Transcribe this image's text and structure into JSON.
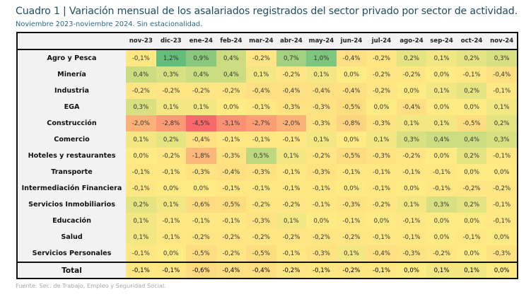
{
  "header": {
    "title": "Cuadro 1 | Variación mensual de los asalariados registrados del sector privado por sector de actividad.",
    "subtitle": "Noviembre 2023-noviembre 2024. Sin estacionalidad."
  },
  "footer": {
    "source": "Fuente: Sec. de Trabajo, Empleo y Seguridad Social."
  },
  "chart_data": {
    "type": "heatmap",
    "title": "Cuadro 1 | Variación mensual de los asalariados registrados del sector privado por sector de actividad.",
    "subtitle": "Noviembre 2023-noviembre 2024. Sin estacionalidad.",
    "unit": "%",
    "color_scale": {
      "low": "#f8696b",
      "mid": "#ffeb84",
      "high": "#63be7b"
    },
    "columns": [
      "nov-23",
      "dic-23",
      "ene-24",
      "feb-24",
      "mar-24",
      "abr-24",
      "may-24",
      "jun-24",
      "jul-24",
      "ago-24",
      "sep-24",
      "oct-24",
      "nov-24"
    ],
    "rows": [
      {
        "label": "Agro y Pesca",
        "values": [
          -0.1,
          1.2,
          0.9,
          0.4,
          -0.2,
          0.7,
          1.0,
          -0.4,
          -0.2,
          0.2,
          0.1,
          0.2,
          0.3
        ]
      },
      {
        "label": "Minería",
        "values": [
          0.4,
          0.3,
          0.4,
          0.4,
          0.1,
          -0.2,
          0.1,
          0.0,
          -0.2,
          -0.2,
          0.0,
          -0.1,
          -0.4
        ]
      },
      {
        "label": "Industria",
        "values": [
          -0.2,
          -0.2,
          -0.2,
          -0.2,
          -0.4,
          -0.4,
          -0.4,
          -0.4,
          -0.2,
          0.0,
          0.1,
          0.2,
          -0.1
        ]
      },
      {
        "label": "EGA",
        "values": [
          0.3,
          0.1,
          0.1,
          0.0,
          -0.1,
          -0.3,
          -0.3,
          -0.5,
          0.0,
          -0.4,
          0.0,
          0.0,
          0.1
        ]
      },
      {
        "label": "Construcción",
        "values": [
          -2.0,
          -2.8,
          -4.5,
          -3.1,
          -2.7,
          -2.0,
          -0.3,
          -0.8,
          -0.3,
          0.1,
          0.1,
          -0.5,
          0.2
        ]
      },
      {
        "label": "Comercio",
        "values": [
          0.1,
          0.2,
          -0.4,
          -0.1,
          -0.1,
          -0.1,
          0.1,
          0.0,
          0.1,
          0.3,
          0.4,
          0.4,
          0.3
        ]
      },
      {
        "label": "Hoteles y restaurantes",
        "values": [
          0.0,
          -0.2,
          -1.8,
          -0.3,
          0.5,
          0.1,
          -0.2,
          -0.5,
          -0.3,
          -0.2,
          0.0,
          0.2,
          -0.1
        ]
      },
      {
        "label": "Transporte",
        "values": [
          -0.1,
          -0.1,
          -0.3,
          -0.4,
          -0.3,
          -0.1,
          -0.3,
          -0.1,
          -0.1,
          -0.1,
          -0.1,
          0.0,
          0.0
        ]
      },
      {
        "label": "Intermediación Financiera",
        "values": [
          -0.1,
          0.0,
          0.0,
          -0.1,
          -0.1,
          -0.1,
          -0.1,
          0.0,
          -0.1,
          0.0,
          -0.1,
          -0.2,
          -0.2
        ]
      },
      {
        "label": "Servicios Inmobiliarios",
        "values": [
          0.2,
          0.1,
          -0.6,
          -0.5,
          -0.2,
          -0.2,
          -0.1,
          -0.3,
          -0.2,
          0.1,
          0.3,
          0.2,
          -0.1
        ]
      },
      {
        "label": "Educación",
        "values": [
          0.1,
          -0.1,
          -0.1,
          -0.1,
          -0.3,
          0.1,
          0.0,
          -0.1,
          0.0,
          -0.1,
          0.0,
          0.0,
          -0.1
        ]
      },
      {
        "label": "Salud",
        "values": [
          0.1,
          -0.1,
          -0.2,
          -0.2,
          -0.2,
          -0.2,
          -0.2,
          -0.2,
          -0.1,
          -0.1,
          0.0,
          -0.1,
          0.0
        ]
      },
      {
        "label": "Servicios Personales",
        "values": [
          -0.1,
          0.0,
          -0.5,
          -0.2,
          -0.5,
          -0.1,
          -0.3,
          0.1,
          -0.4,
          -0.3,
          -0.2,
          0.0,
          -0.3
        ]
      }
    ],
    "total": {
      "label": "Total",
      "values": [
        -0.1,
        -0.1,
        -0.6,
        -0.4,
        -0.4,
        -0.2,
        -0.1,
        -0.2,
        -0.1,
        0.0,
        0.1,
        0.1,
        0.0
      ]
    }
  }
}
